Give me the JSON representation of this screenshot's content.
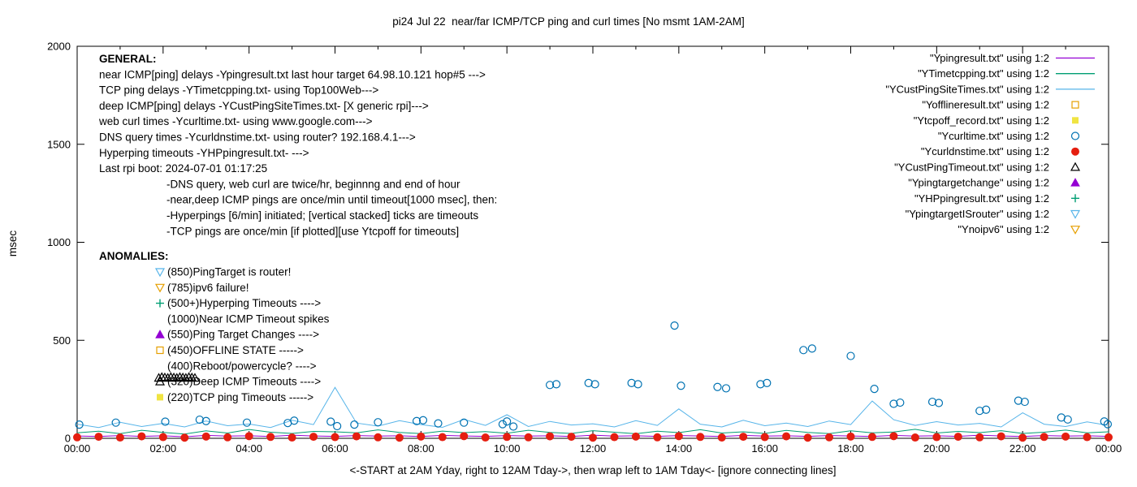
{
  "title": "pi24 Jul 22  near/far ICMP/TCP ping and curl times [No msmt 1AM-2AM]",
  "ylabel": "msec",
  "xlabel": "<-START at 2AM Yday, right to 12AM Tday->, then wrap left to 1AM Tday<- [ignore connecting lines]",
  "axes": {
    "ylim": [
      0,
      2000
    ],
    "yticks": [
      0,
      500,
      1000,
      1500,
      2000
    ],
    "xtick_hours": [
      0,
      2,
      4,
      6,
      8,
      10,
      12,
      14,
      16,
      18,
      20,
      22,
      24
    ],
    "xtick_labels": [
      "00:00",
      "02:00",
      "04:00",
      "06:00",
      "08:00",
      "10:00",
      "12:00",
      "14:00",
      "16:00",
      "18:00",
      "20:00",
      "22:00",
      "00:00"
    ],
    "grid": "off",
    "legend_position": "top-right-inside"
  },
  "general": {
    "heading": "GENERAL:",
    "lines": [
      "near ICMP[ping] delays -Ypingresult.txt last hour target 64.98.10.121 hop#5 --->",
      "TCP ping delays -YTimetcpping.txt- using Top100Web--->",
      "deep ICMP[ping] delays -YCustPingSiteTimes.txt- [X generic rpi]--->",
      "web curl times -Ycurltime.txt- using www.google.com--->",
      "DNS query times -Ycurldnstime.txt- using router? 192.168.4.1--->",
      "Hyperping timeouts -YHPpingresult.txt- --->",
      "Last rpi boot: 2024-07-01 01:17:25"
    ],
    "notes": [
      "-DNS query, web curl are twice/hr, beginnng and end of hour",
      "-near,deep ICMP pings are once/min until timeout[1000 msec], then:",
      " -Hyperpings [6/min] initiated; [vertical stacked] ticks are timeouts",
      "-TCP pings are once/min [if plotted][use Ytcpoff for timeouts]"
    ]
  },
  "anomalies": {
    "heading": "ANOMALIES:",
    "items": [
      {
        "marker": "tri-down-open",
        "color": "#56b4e9",
        "text": "(850)PingTarget is router!"
      },
      {
        "marker": "tri-down-open",
        "color": "#e69f00",
        "text": "(785)ipv6 failure!"
      },
      {
        "marker": "plus",
        "color": "#009e73",
        "text": "(500+)Hyperping Timeouts ---->"
      },
      {
        "marker": null,
        "color": null,
        "text": "(1000)Near ICMP Timeout spikes"
      },
      {
        "marker": "tri-up-filled",
        "color": "#9400d3",
        "text": "(550)Ping Target Changes ---->"
      },
      {
        "marker": "square-open",
        "color": "#e69f00",
        "text": "(450)OFFLINE STATE ----->"
      },
      {
        "marker": null,
        "color": null,
        "text": "(400)Reboot/powercycle? ---->"
      },
      {
        "marker": "tri-up-open",
        "color": "#000000",
        "text": "(320)Deep ICMP Timeouts ---->"
      },
      {
        "marker": "square-filled",
        "color": "#f0e442",
        "text": "(220)TCP ping Timeouts ----->"
      }
    ]
  },
  "legend": [
    {
      "label": "\"Ypingresult.txt\" using 1:2",
      "sample": "line",
      "color": "#9400d3"
    },
    {
      "label": "\"YTimetcpping.txt\" using 1:2",
      "sample": "line",
      "color": "#009e73"
    },
    {
      "label": "\"YCustPingSiteTimes.txt\" using 1:2",
      "sample": "line",
      "color": "#56b4e9"
    },
    {
      "label": "\"Yofflineresult.txt\" using 1:2",
      "sample": "square-open",
      "color": "#e69f00"
    },
    {
      "label": "\"Ytcpoff_record.txt\" using 1:2",
      "sample": "square-filled",
      "color": "#f0e442"
    },
    {
      "label": "\"Ycurltime.txt\" using 1:2",
      "sample": "circle-open",
      "color": "#0072b2"
    },
    {
      "label": "\"Ycurldnstime.txt\" using 1:2",
      "sample": "circle-filled",
      "color": "#e51e10"
    },
    {
      "label": "\"YCustPingTimeout.txt\" using 1:2",
      "sample": "tri-up-open",
      "color": "#000000"
    },
    {
      "label": "\"Ypingtargetchange\" using 1:2",
      "sample": "tri-up-filled",
      "color": "#9400d3"
    },
    {
      "label": "\"YHPpingresult.txt\" using 1:2",
      "sample": "plus",
      "color": "#009e73"
    },
    {
      "label": "\"YpingtargetISrouter\" using 1:2",
      "sample": "tri-down-open",
      "color": "#56b4e9"
    },
    {
      "label": "\"Ynoipv6\" using 1:2",
      "sample": "tri-down-open",
      "color": "#e69f00"
    }
  ],
  "chart_data": {
    "type": "line",
    "x_unit": "time of day, hours 00:00-24:00",
    "ylabel": "msec",
    "ylim": [
      0,
      2000
    ],
    "xlim_hours": [
      0,
      24
    ],
    "line_series": [
      {
        "name": "Ypingresult.txt (near ICMP ping, ms)",
        "color": "#9400d3",
        "x_start": 0,
        "x_step": 0.5,
        "y": [
          12,
          9,
          14,
          10,
          13,
          8,
          15,
          11,
          13,
          9,
          16,
          12,
          10,
          14,
          11,
          13,
          9,
          15,
          12,
          10,
          14,
          11,
          13,
          9,
          16,
          11,
          13,
          10,
          14,
          12,
          9,
          15,
          11,
          13,
          10,
          14,
          12,
          9,
          15,
          11,
          13,
          10,
          16,
          12,
          9,
          14,
          11,
          13,
          10
        ]
      },
      {
        "name": "YTimetcpping.txt (TCP ping, ms)",
        "color": "#009e73",
        "x_start": 0,
        "x_step": 0.5,
        "y": [
          28,
          36,
          24,
          41,
          30,
          22,
          38,
          27,
          45,
          31,
          25,
          35,
          33,
          28,
          43,
          30,
          24,
          37,
          29,
          34,
          26,
          41,
          30,
          25,
          39,
          31,
          23,
          36,
          29,
          44,
          27,
          33,
          25,
          40,
          30,
          24,
          38,
          28,
          32,
          46,
          27,
          35,
          29,
          39,
          25,
          31,
          42,
          28,
          33
        ]
      },
      {
        "name": "YCustPingSiteTimes.txt (deep ICMP ping, ms)",
        "color": "#56b4e9",
        "x_start": 0,
        "x_step": 0.5,
        "y": [
          72,
          55,
          82,
          60,
          76,
          58,
          88,
          64,
          73,
          55,
          92,
          70,
          260,
          78,
          62,
          90,
          70,
          56,
          96,
          66,
          120,
          60,
          86,
          68,
          74,
          58,
          90,
          66,
          150,
          72,
          58,
          92,
          64,
          78,
          60,
          88,
          70,
          190,
          95,
          66,
          85,
          68,
          76,
          58,
          130,
          72,
          60,
          84,
          66
        ]
      }
    ],
    "point_series": [
      {
        "name": "Ycurltime.txt (web curl, ms)",
        "marker": "circle-open",
        "color": "#0072b2",
        "points": [
          [
            0.05,
            70
          ],
          [
            0.9,
            80
          ],
          [
            2.05,
            85
          ],
          [
            2.85,
            95
          ],
          [
            3.0,
            88
          ],
          [
            3.95,
            80
          ],
          [
            4.9,
            78
          ],
          [
            5.05,
            90
          ],
          [
            5.9,
            85
          ],
          [
            6.05,
            62
          ],
          [
            6.45,
            70
          ],
          [
            7.0,
            82
          ],
          [
            7.9,
            88
          ],
          [
            8.05,
            92
          ],
          [
            8.4,
            76
          ],
          [
            9.0,
            80
          ],
          [
            9.9,
            72
          ],
          [
            10.0,
            86
          ],
          [
            10.15,
            60
          ],
          [
            11.0,
            272
          ],
          [
            11.15,
            276
          ],
          [
            11.9,
            282
          ],
          [
            12.05,
            276
          ],
          [
            12.9,
            282
          ],
          [
            13.05,
            276
          ],
          [
            13.9,
            575
          ],
          [
            14.05,
            268
          ],
          [
            14.9,
            262
          ],
          [
            15.1,
            255
          ],
          [
            15.9,
            276
          ],
          [
            16.05,
            282
          ],
          [
            16.9,
            450
          ],
          [
            17.1,
            458
          ],
          [
            18.0,
            420
          ],
          [
            18.55,
            252
          ],
          [
            19.0,
            176
          ],
          [
            19.15,
            182
          ],
          [
            19.9,
            186
          ],
          [
            20.05,
            180
          ],
          [
            21.0,
            140
          ],
          [
            21.15,
            146
          ],
          [
            21.9,
            192
          ],
          [
            22.05,
            186
          ],
          [
            22.9,
            106
          ],
          [
            23.05,
            96
          ],
          [
            23.9,
            86
          ],
          [
            23.98,
            72
          ]
        ]
      },
      {
        "name": "Ycurldnstime.txt (DNS query, ms)",
        "marker": "circle-filled",
        "color": "#e51e10",
        "x_start": 0,
        "x_step": 0.5,
        "y": [
          5,
          8,
          4,
          10,
          6,
          3,
          9,
          5,
          11,
          7,
          4,
          8,
          6,
          10,
          5,
          3,
          9,
          6,
          11,
          4,
          7,
          5,
          10,
          8,
          3,
          6,
          9,
          5,
          11,
          7,
          4,
          8,
          6,
          10,
          3,
          5,
          9,
          7,
          11,
          4,
          6,
          8,
          5,
          10,
          3,
          7,
          9,
          6,
          5
        ]
      },
      {
        "name": "YCustPingTimeout.txt (deep ICMP timeouts, plotted ~310)",
        "marker": "tri-up-open",
        "color": "#000000",
        "points": [
          [
            1.9,
            308
          ],
          [
            1.97,
            312
          ],
          [
            2.04,
            310
          ],
          [
            2.11,
            308
          ],
          [
            2.18,
            312
          ],
          [
            2.25,
            310
          ],
          [
            2.32,
            308
          ],
          [
            2.39,
            312
          ],
          [
            2.46,
            310
          ],
          [
            2.53,
            308
          ],
          [
            2.6,
            312
          ],
          [
            2.67,
            310
          ],
          [
            2.74,
            308
          ]
        ]
      },
      {
        "name": "Yofflineresult.txt (offline state, plotted 450)",
        "marker": "square-open",
        "color": "#e69f00",
        "points": []
      },
      {
        "name": "Ytcpoff_record.txt (TCP ping timeouts, plotted 220)",
        "marker": "square-filled",
        "color": "#f0e442",
        "points": []
      },
      {
        "name": "Ypingtargetchange (plotted 550)",
        "marker": "tri-up-filled",
        "color": "#9400d3",
        "points": []
      },
      {
        "name": "YHPpingresult.txt (hyperping timeouts, plotted 500+)",
        "marker": "plus",
        "color": "#009e73",
        "points": []
      },
      {
        "name": "YpingtargetISrouter (plotted 850)",
        "marker": "tri-down-open",
        "color": "#56b4e9",
        "points": []
      },
      {
        "name": "Ynoipv6 (ipv6 failure, plotted 785)",
        "marker": "tri-down-open",
        "color": "#e69f00",
        "points": []
      }
    ]
  }
}
